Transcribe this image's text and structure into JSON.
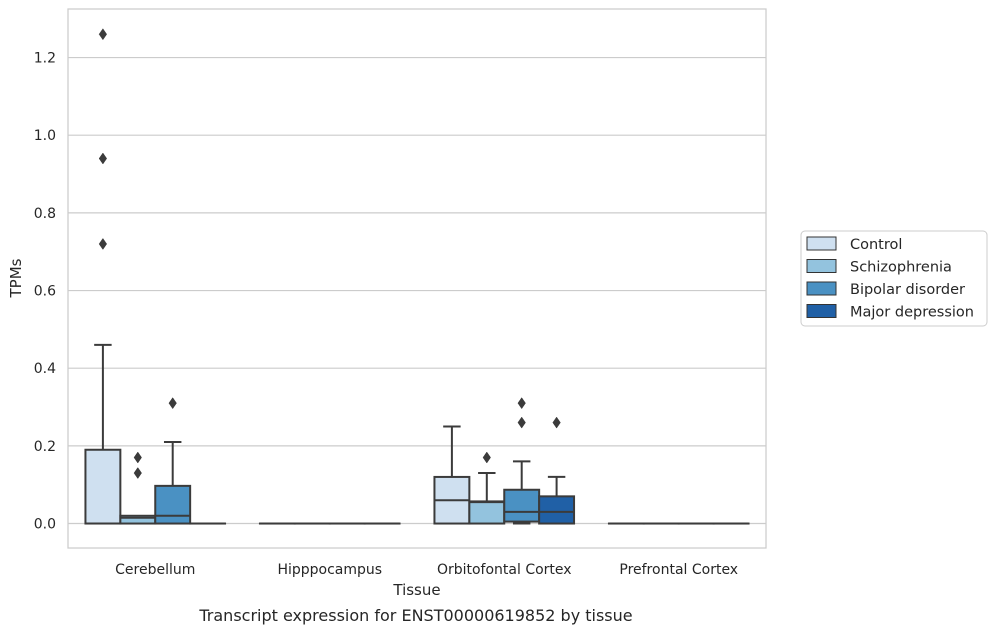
{
  "caption": "Transcript expression for ENST00000619852 by tissue",
  "colors": {
    "Control": "#cfe0f0",
    "Schizophrenia": "#93c3de",
    "Bipolar disorder": "#4a91c3",
    "Major depression": "#2060a6",
    "box_edge": "#3b3b3b",
    "grid": "#cccccc",
    "frame": "#cccccc"
  },
  "chart_data": {
    "type": "box",
    "xlabel": "Tissue",
    "ylabel": "TPMs",
    "ylim": [
      -0.063,
      1.325
    ],
    "yticks": [
      0.0,
      0.2,
      0.4,
      0.6,
      0.8,
      1.0,
      1.2
    ],
    "ytick_labels": [
      "0.0",
      "0.2",
      "0.4",
      "0.6",
      "0.8",
      "1.0",
      "1.2"
    ],
    "grid": "horizontal",
    "legend_position": "right",
    "categories": [
      "Cerebellum",
      "Hipppocampus",
      "Orbitofontal Cortex",
      "Prefrontal Cortex"
    ],
    "series": [
      {
        "name": "Control",
        "boxes": [
          {
            "q1": 0.0,
            "median": 0.0,
            "q3": 0.19,
            "whisker_low": 0.0,
            "whisker_high": 0.46,
            "outliers": [
              0.72,
              0.94,
              1.26
            ]
          },
          {
            "q1": 0.0,
            "median": 0.0,
            "q3": 0.0,
            "whisker_low": 0.0,
            "whisker_high": 0.0,
            "outliers": []
          },
          {
            "q1": 0.0,
            "median": 0.06,
            "q3": 0.12,
            "whisker_low": 0.0,
            "whisker_high": 0.25,
            "outliers": []
          },
          {
            "q1": 0.0,
            "median": 0.0,
            "q3": 0.0,
            "whisker_low": 0.0,
            "whisker_high": 0.0,
            "outliers": []
          }
        ]
      },
      {
        "name": "Schizophrenia",
        "boxes": [
          {
            "q1": 0.0,
            "median": 0.015,
            "q3": 0.02,
            "whisker_low": 0.0,
            "whisker_high": 0.02,
            "outliers": [
              0.13,
              0.17
            ]
          },
          {
            "q1": 0.0,
            "median": 0.0,
            "q3": 0.0,
            "whisker_low": 0.0,
            "whisker_high": 0.0,
            "outliers": []
          },
          {
            "q1": 0.0,
            "median": 0.055,
            "q3": 0.057,
            "whisker_low": 0.0,
            "whisker_high": 0.13,
            "outliers": [
              0.17
            ]
          },
          {
            "q1": 0.0,
            "median": 0.0,
            "q3": 0.0,
            "whisker_low": 0.0,
            "whisker_high": 0.0,
            "outliers": []
          }
        ]
      },
      {
        "name": "Bipolar disorder",
        "boxes": [
          {
            "q1": 0.0,
            "median": 0.02,
            "q3": 0.097,
            "whisker_low": 0.0,
            "whisker_high": 0.21,
            "outliers": [
              0.31
            ]
          },
          {
            "q1": 0.0,
            "median": 0.0,
            "q3": 0.0,
            "whisker_low": 0.0,
            "whisker_high": 0.0,
            "outliers": []
          },
          {
            "q1": 0.005,
            "median": 0.03,
            "q3": 0.087,
            "whisker_low": 0.0,
            "whisker_high": 0.16,
            "outliers": [
              0.26,
              0.31
            ]
          },
          {
            "q1": 0.0,
            "median": 0.0,
            "q3": 0.0,
            "whisker_low": 0.0,
            "whisker_high": 0.0,
            "outliers": []
          }
        ]
      },
      {
        "name": "Major depression",
        "boxes": [
          {
            "q1": 0.0,
            "median": 0.0,
            "q3": 0.0,
            "whisker_low": 0.0,
            "whisker_high": 0.0,
            "outliers": []
          },
          {
            "q1": 0.0,
            "median": 0.0,
            "q3": 0.0,
            "whisker_low": 0.0,
            "whisker_high": 0.0,
            "outliers": []
          },
          {
            "q1": 0.0,
            "median": 0.03,
            "q3": 0.07,
            "whisker_low": 0.0,
            "whisker_high": 0.12,
            "outliers": [
              0.26
            ]
          },
          {
            "q1": 0.0,
            "median": 0.0,
            "q3": 0.0,
            "whisker_low": 0.0,
            "whisker_high": 0.0,
            "outliers": []
          }
        ]
      }
    ]
  }
}
